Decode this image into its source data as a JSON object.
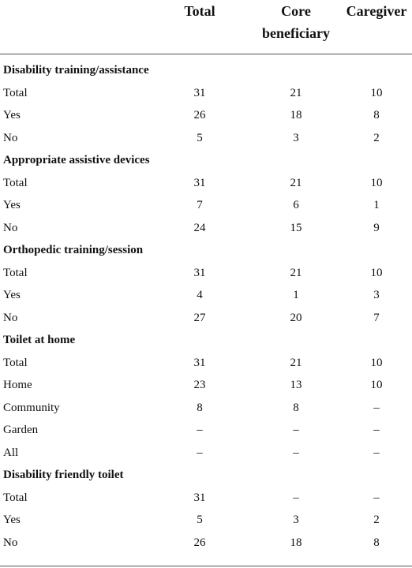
{
  "table": {
    "columns": [
      "Total",
      "Core beneficiary",
      "Caregiver"
    ],
    "header": {
      "total": "Total",
      "core_line1": "Core",
      "core_line2": "beneficiary",
      "caregiver": "Caregiver"
    },
    "rows": [
      {
        "label": "Disability training/assistance",
        "section": true
      },
      {
        "label": "Total",
        "total": "31",
        "core": "21",
        "caregiver": "10"
      },
      {
        "label": "Yes",
        "total": "26",
        "core": "18",
        "caregiver": "8"
      },
      {
        "label": "No",
        "total": "5",
        "core": "3",
        "caregiver": "2"
      },
      {
        "label": "Appropriate assistive devices",
        "section": true
      },
      {
        "label": "Total",
        "total": "31",
        "core": "21",
        "caregiver": "10"
      },
      {
        "label": "Yes",
        "total": "7",
        "core": "6",
        "caregiver": "1"
      },
      {
        "label": "No",
        "total": "24",
        "core": "15",
        "caregiver": "9"
      },
      {
        "label": "Orthopedic training/session",
        "section": true
      },
      {
        "label": "Total",
        "total": "31",
        "core": "21",
        "caregiver": "10"
      },
      {
        "label": "Yes",
        "total": "4",
        "core": "1",
        "caregiver": "3"
      },
      {
        "label": "No",
        "total": "27",
        "core": "20",
        "caregiver": "7"
      },
      {
        "label": "Toilet at home",
        "section": true
      },
      {
        "label": "Total",
        "total": "31",
        "core": "21",
        "caregiver": "10"
      },
      {
        "label": "Home",
        "total": "23",
        "core": "13",
        "caregiver": "10"
      },
      {
        "label": "Community",
        "total": "8",
        "core": "8",
        "caregiver": "–"
      },
      {
        "label": "Garden",
        "total": "–",
        "core": "–",
        "caregiver": "–"
      },
      {
        "label": "All",
        "total": "–",
        "core": "–",
        "caregiver": "–"
      },
      {
        "label": "Disability friendly toilet",
        "section": true
      },
      {
        "label": "Total",
        "total": "31",
        "core": "–",
        "caregiver": "–"
      },
      {
        "label": "Yes",
        "total": "5",
        "core": "3",
        "caregiver": "2"
      },
      {
        "label": "No",
        "total": "26",
        "core": "18",
        "caregiver": "8"
      }
    ]
  }
}
